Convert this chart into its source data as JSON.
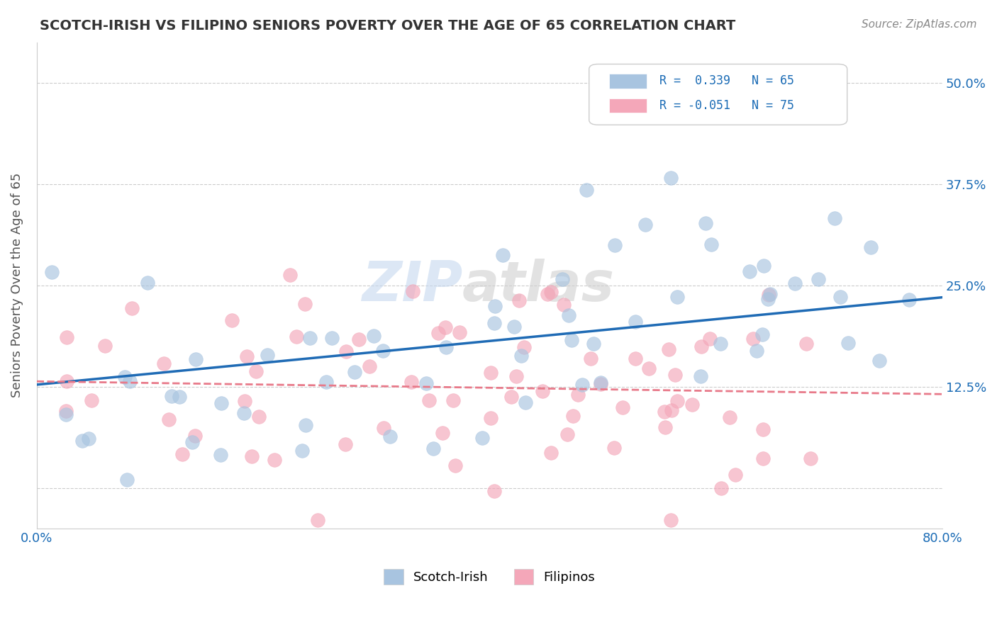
{
  "title": "SCOTCH-IRISH VS FILIPINO SENIORS POVERTY OVER THE AGE OF 65 CORRELATION CHART",
  "source": "Source: ZipAtlas.com",
  "ylabel": "Seniors Poverty Over the Age of 65",
  "xlim": [
    0.0,
    0.8
  ],
  "ylim": [
    -0.05,
    0.55
  ],
  "xtick_positions": [
    0.0,
    0.1,
    0.2,
    0.3,
    0.4,
    0.5,
    0.6,
    0.7,
    0.8
  ],
  "xticklabels": [
    "0.0%",
    "",
    "",
    "",
    "",
    "",
    "",
    "",
    "80.0%"
  ],
  "ytick_positions": [
    0.0,
    0.125,
    0.25,
    0.375,
    0.5
  ],
  "yticklabels": [
    "",
    "12.5%",
    "25.0%",
    "37.5%",
    "50.0%"
  ],
  "R_scotch": 0.339,
  "N_scotch": 65,
  "R_filipino": -0.051,
  "N_filipino": 75,
  "scotch_color": "#a8c4e0",
  "filipino_color": "#f4a7b9",
  "scotch_line_color": "#1f6bb5",
  "filipino_line_color": "#e87a8a",
  "background_color": "#ffffff",
  "grid_color": "#cccccc"
}
